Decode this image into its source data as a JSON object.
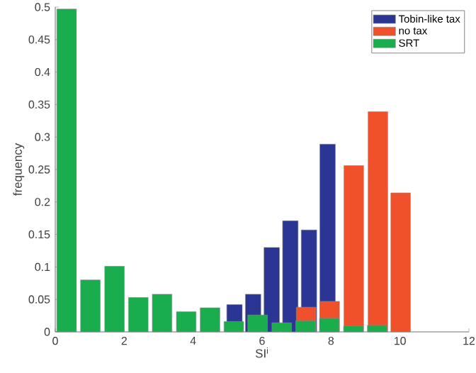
{
  "chart_data": {
    "type": "bar",
    "xlabel": "SI$^{i}$",
    "ylabel": "frequency",
    "xlim": [
      0,
      12
    ],
    "ylim": [
      0,
      0.5
    ],
    "xticks": [
      0,
      2,
      4,
      6,
      8,
      10,
      12
    ],
    "yticks": [
      0,
      0.05,
      0.1,
      0.15,
      0.2,
      0.25,
      0.3,
      0.35,
      0.4,
      0.45,
      0.5
    ],
    "legend": "top right",
    "grid": false,
    "series": [
      {
        "name": "Tobin-like tax",
        "color": "#2b3593",
        "x": [
          5.2,
          5.74,
          6.28,
          6.82,
          7.36,
          7.9
        ],
        "values": [
          0.042,
          0.058,
          0.13,
          0.171,
          0.157,
          0.289
        ]
      },
      {
        "name": "no tax",
        "color": "#f0502a",
        "x": [
          7.28,
          7.96,
          8.66,
          9.36,
          10.02
        ],
        "values": [
          0.038,
          0.047,
          0.256,
          0.339,
          0.214
        ]
      },
      {
        "name": "SRT",
        "color": "#1aad4e",
        "x": [
          0.33,
          1.02,
          1.72,
          2.41,
          3.1,
          3.8,
          4.49,
          5.18,
          5.87,
          6.57,
          7.26,
          7.95,
          8.65,
          9.34
        ],
        "values": [
          0.497,
          0.08,
          0.101,
          0.053,
          0.058,
          0.031,
          0.037,
          0.016,
          0.026,
          0.014,
          0.017,
          0.021,
          0.009,
          0.01
        ]
      }
    ]
  }
}
